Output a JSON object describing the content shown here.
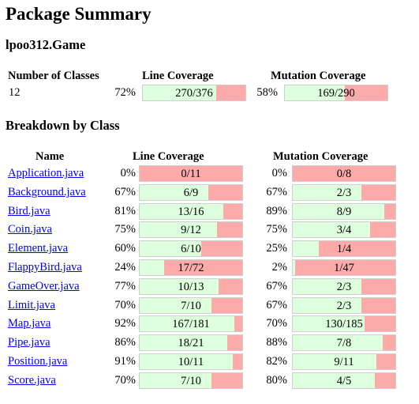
{
  "title": "Package Summary",
  "package_name": "lpoo312.Game",
  "summary": {
    "headers": {
      "classes": "Number of Classes",
      "line": "Line Coverage",
      "mutation": "Mutation Coverage"
    },
    "classes": "12",
    "line": {
      "percent": "72%",
      "ratio": "270/376",
      "fraction": 0.718
    },
    "mutation": {
      "percent": "58%",
      "ratio": "169/290",
      "fraction": 0.583
    }
  },
  "breakdown_title": "Breakdown by Class",
  "breakdown_headers": {
    "name": "Name",
    "line": "Line Coverage",
    "mutation": "Mutation Coverage"
  },
  "rows": [
    {
      "name": "Application.java",
      "line_pct": "0%",
      "line_ratio": "0/11",
      "line_fraction": 0.0,
      "mut_pct": "0%",
      "mut_ratio": "0/8",
      "mut_fraction": 0.0
    },
    {
      "name": "Background.java",
      "line_pct": "67%",
      "line_ratio": "6/9",
      "line_fraction": 0.667,
      "mut_pct": "67%",
      "mut_ratio": "2/3",
      "mut_fraction": 0.667
    },
    {
      "name": "Bird.java",
      "line_pct": "81%",
      "line_ratio": "13/16",
      "line_fraction": 0.8125,
      "mut_pct": "89%",
      "mut_ratio": "8/9",
      "mut_fraction": 0.889
    },
    {
      "name": "Coin.java",
      "line_pct": "75%",
      "line_ratio": "9/12",
      "line_fraction": 0.75,
      "mut_pct": "75%",
      "mut_ratio": "3/4",
      "mut_fraction": 0.75
    },
    {
      "name": "Element.java",
      "line_pct": "60%",
      "line_ratio": "6/10",
      "line_fraction": 0.6,
      "mut_pct": "25%",
      "mut_ratio": "1/4",
      "mut_fraction": 0.25
    },
    {
      "name": "FlappyBird.java",
      "line_pct": "24%",
      "line_ratio": "17/72",
      "line_fraction": 0.236,
      "mut_pct": "2%",
      "mut_ratio": "1/47",
      "mut_fraction": 0.021
    },
    {
      "name": "GameOver.java",
      "line_pct": "77%",
      "line_ratio": "10/13",
      "line_fraction": 0.769,
      "mut_pct": "67%",
      "mut_ratio": "2/3",
      "mut_fraction": 0.667
    },
    {
      "name": "Limit.java",
      "line_pct": "70%",
      "line_ratio": "7/10",
      "line_fraction": 0.7,
      "mut_pct": "67%",
      "mut_ratio": "2/3",
      "mut_fraction": 0.667
    },
    {
      "name": "Map.java",
      "line_pct": "92%",
      "line_ratio": "167/181",
      "line_fraction": 0.923,
      "mut_pct": "70%",
      "mut_ratio": "130/185",
      "mut_fraction": 0.703
    },
    {
      "name": "Pipe.java",
      "line_pct": "86%",
      "line_ratio": "18/21",
      "line_fraction": 0.857,
      "mut_pct": "88%",
      "mut_ratio": "7/8",
      "mut_fraction": 0.875
    },
    {
      "name": "Position.java",
      "line_pct": "91%",
      "line_ratio": "10/11",
      "line_fraction": 0.909,
      "mut_pct": "82%",
      "mut_ratio": "9/11",
      "mut_fraction": 0.818
    },
    {
      "name": "Score.java",
      "line_pct": "70%",
      "line_ratio": "7/10",
      "line_fraction": 0.7,
      "mut_pct": "80%",
      "mut_ratio": "4/5",
      "mut_fraction": 0.8
    }
  ],
  "colors": {
    "covered": "#ddffdd",
    "uncovered": "#fcaaaa",
    "link": "#0000ee"
  }
}
